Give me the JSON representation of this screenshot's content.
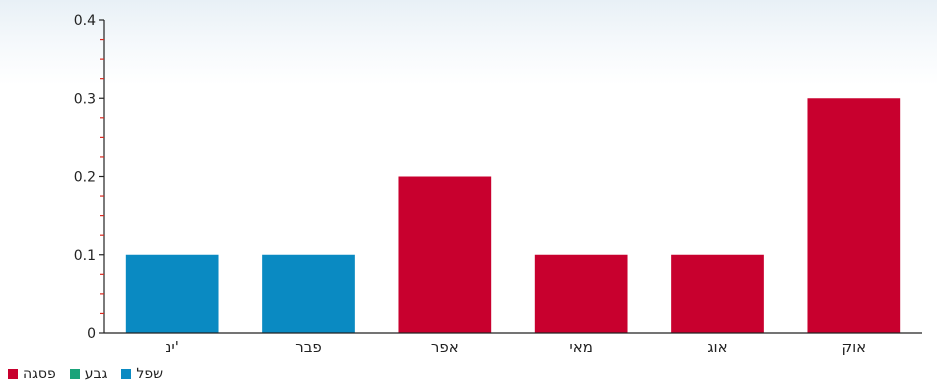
{
  "chart_data": {
    "type": "bar",
    "categories": [
      "ינ'",
      "פבר",
      "אפר",
      "מאי",
      "אוג",
      "אוק"
    ],
    "values": [
      0.1,
      0.1,
      0.2,
      0.1,
      0.1,
      0.3
    ],
    "bar_series": [
      "שפל",
      "שפל",
      "פסגה",
      "פסגה",
      "פסגה",
      "פסגה"
    ],
    "legend": [
      {
        "name": "פסגה",
        "color": "#c8002e"
      },
      {
        "name": "גבע",
        "color": "#1aa37a"
      },
      {
        "name": "שפל",
        "color": "#0a8ac2"
      }
    ],
    "yticks": [
      "0",
      "0.1",
      "0.2",
      "0.3",
      "0.4"
    ],
    "ylim": [
      0,
      0.4
    ],
    "title": "",
    "xlabel": "",
    "ylabel": "",
    "legend_position": "bottom-left",
    "grid": false
  }
}
